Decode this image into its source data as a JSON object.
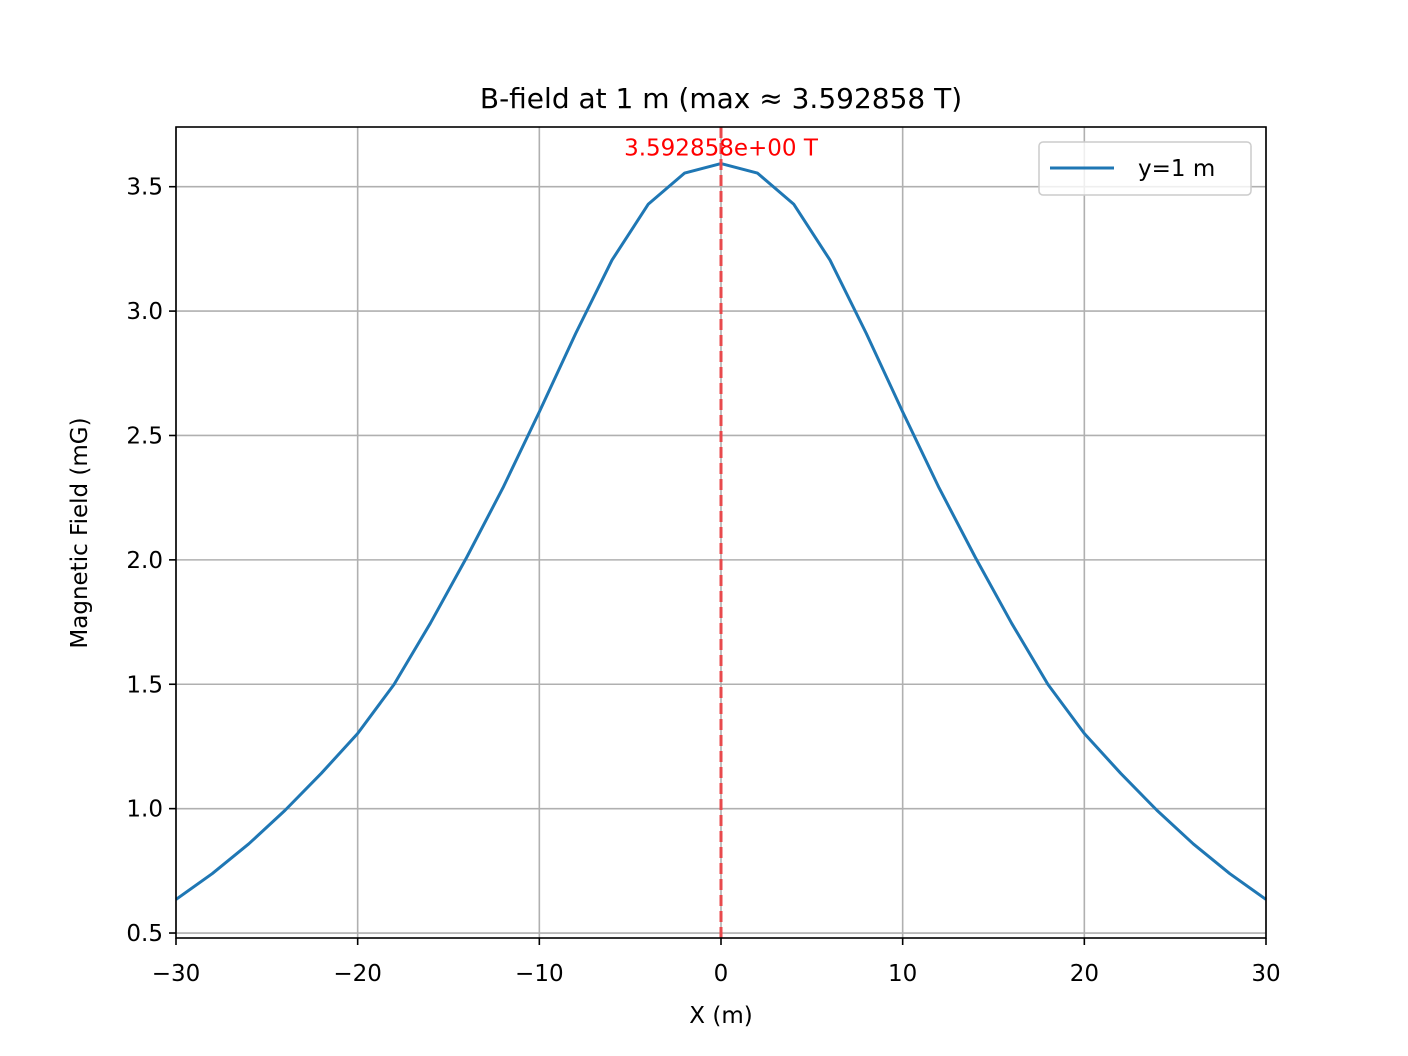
{
  "chart_data": {
    "type": "line",
    "title": "B-field at 1 m (max ≈ 3.592858 T)",
    "xlabel": "X (m)",
    "ylabel": "Magnetic Field (mG)",
    "xlim": [
      -30,
      30
    ],
    "ylim": [
      0.48,
      3.74
    ],
    "xticks": [
      -30,
      -20,
      -10,
      0,
      10,
      20,
      30
    ],
    "xtick_labels": [
      "−30",
      "−20",
      "−10",
      "0",
      "10",
      "20",
      "30"
    ],
    "yticks": [
      0.5,
      1.0,
      1.5,
      2.0,
      2.5,
      3.0,
      3.5
    ],
    "ytick_labels": [
      "0.5",
      "1.0",
      "1.5",
      "2.0",
      "2.5",
      "3.0",
      "3.5"
    ],
    "grid": true,
    "legend_position": "top-right",
    "series": [
      {
        "name": "y=1 m",
        "color": "#1f77b4",
        "x": [
          -30,
          -28,
          -26,
          -24,
          -22,
          -20,
          -18,
          -16,
          -14,
          -12,
          -10,
          -8,
          -6,
          -4,
          -2,
          0,
          2,
          4,
          6,
          8,
          10,
          12,
          14,
          16,
          18,
          20,
          22,
          24,
          26,
          28,
          30
        ],
        "y": [
          0.635,
          0.739,
          0.858,
          0.993,
          1.142,
          1.302,
          1.499,
          1.745,
          2.01,
          2.29,
          2.595,
          2.91,
          3.205,
          3.43,
          3.555,
          3.593,
          3.555,
          3.43,
          3.205,
          2.91,
          2.595,
          2.29,
          2.01,
          1.745,
          1.499,
          1.302,
          1.142,
          0.993,
          0.858,
          0.739,
          0.635
        ]
      }
    ],
    "annotations": [
      {
        "type": "vline",
        "x": 0,
        "style": "dashed",
        "color": "#e8494c"
      },
      {
        "type": "text",
        "text": "3.592858e+00 T",
        "x": 0,
        "y": 3.593,
        "color": "#ff0000"
      }
    ]
  }
}
